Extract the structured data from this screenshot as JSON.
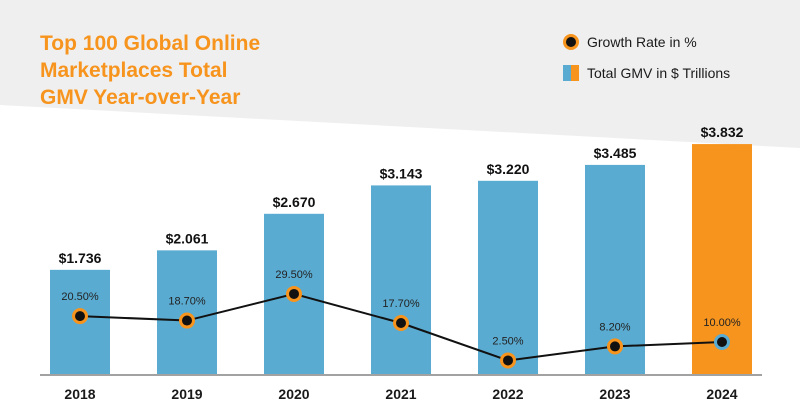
{
  "title": "Top 100 Global Online\nMarketplaces Total\nGMV Year-over-Year",
  "legend": {
    "growth_label": "Growth Rate in %",
    "gmv_label": "Total GMV in $ Trillions"
  },
  "colors": {
    "bar": "#5aabd1",
    "bar_highlight": "#f7941d",
    "line": "#111111",
    "marker_fill": "#111111",
    "marker_ring": "#f7941d",
    "marker_ring_last": "#5aabd1",
    "title": "#f7941d",
    "band": "#efeff0"
  },
  "chart_data": {
    "type": "bar",
    "categories": [
      "2018",
      "2019",
      "2020",
      "2021",
      "2022",
      "2023",
      "2024"
    ],
    "series": [
      {
        "name": "Total GMV in $ Trillions",
        "type": "bar",
        "values": [
          1.736,
          2.061,
          2.67,
          3.143,
          3.22,
          3.485,
          3.832
        ],
        "labels": [
          "$1.736",
          "$2.061",
          "$2.670",
          "$3.143",
          "$3.220",
          "$3.485",
          "$3.832"
        ],
        "highlight_index": 6
      },
      {
        "name": "Growth Rate in %",
        "type": "line",
        "values": [
          20.5,
          18.7,
          29.5,
          17.7,
          2.5,
          8.2,
          10.0
        ],
        "labels": [
          "20.50%",
          "18.70%",
          "29.50%",
          "17.70%",
          "2.50%",
          "8.20%",
          "10.00%"
        ]
      }
    ],
    "gmv_ylim": [
      0,
      3.9
    ],
    "growth_ylim": [
      -3,
      92
    ],
    "grid": false,
    "legend_position": "top-right"
  }
}
